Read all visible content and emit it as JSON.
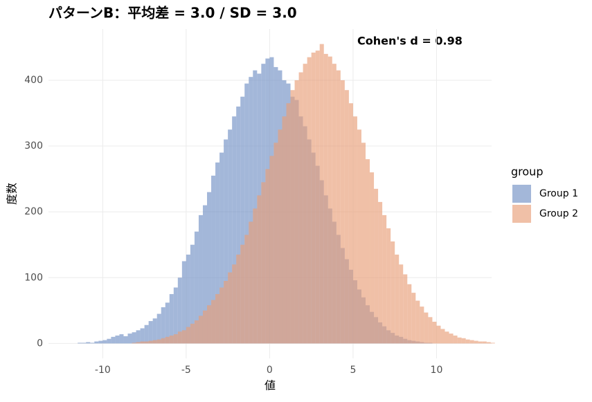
{
  "chart_data": {
    "type": "histogram",
    "title": "パターンB：平均差 = 3.0 / SD = 3.0",
    "annotation": "Cohen's d = 0.98",
    "x_label": "値",
    "y_label": "度数",
    "legend_title": "group",
    "bins": [
      -11.5,
      -11.25,
      -11,
      -10.75,
      -10.5,
      -10.25,
      -10,
      -9.75,
      -9.5,
      -9.25,
      -9,
      -8.75,
      -8.5,
      -8.25,
      -8,
      -7.75,
      -7.5,
      -7.25,
      -7,
      -6.75,
      -6.5,
      -6.25,
      -6,
      -5.75,
      -5.5,
      -5.25,
      -5,
      -4.75,
      -4.5,
      -4.25,
      -4,
      -3.75,
      -3.5,
      -3.25,
      -3,
      -2.75,
      -2.5,
      -2.25,
      -2,
      -1.75,
      -1.5,
      -1.25,
      -1,
      -0.75,
      -0.5,
      -0.25,
      0,
      0.25,
      0.5,
      0.75,
      1,
      1.25,
      1.5,
      1.75,
      2,
      2.25,
      2.5,
      2.75,
      3,
      3.25,
      3.5,
      3.75,
      4,
      4.25,
      4.5,
      4.75,
      5,
      5.25,
      5.5,
      5.75,
      6,
      6.25,
      6.5,
      6.75,
      7,
      7.25,
      7.5,
      7.75,
      8,
      8.25,
      8.5,
      8.75,
      9,
      9.25,
      9.5,
      9.75,
      10,
      10.25,
      10.5,
      10.75,
      11,
      11.25,
      11.5,
      11.75,
      12,
      12.25,
      12.5,
      12.75,
      13,
      13.25,
      13.5
    ],
    "series": [
      {
        "name": "Group 1",
        "color": "#7191c5",
        "values": [
          1,
          1,
          2,
          1,
          3,
          4,
          5,
          7,
          10,
          12,
          14,
          11,
          15,
          17,
          20,
          23,
          28,
          34,
          38,
          45,
          55,
          62,
          75,
          85,
          100,
          125,
          135,
          150,
          170,
          195,
          210,
          230,
          255,
          275,
          290,
          310,
          325,
          345,
          360,
          375,
          395,
          405,
          415,
          410,
          425,
          433,
          435,
          420,
          415,
          400,
          395,
          375,
          370,
          345,
          330,
          310,
          290,
          270,
          248,
          225,
          205,
          185,
          165,
          145,
          128,
          112,
          96,
          82,
          70,
          58,
          48,
          40,
          32,
          26,
          20,
          16,
          12,
          10,
          7,
          5,
          4,
          3,
          2,
          1,
          1,
          0,
          0,
          0,
          0,
          0,
          0,
          0,
          0,
          0,
          0,
          0,
          0,
          0,
          0,
          0
        ]
      },
      {
        "name": "Group 2",
        "color": "#e89e78",
        "values": [
          0,
          0,
          0,
          0,
          0,
          0,
          0,
          0,
          0,
          0,
          0,
          0,
          0,
          1,
          2,
          3,
          3,
          4,
          5,
          6,
          8,
          10,
          12,
          14,
          18,
          20,
          25,
          30,
          35,
          42,
          50,
          58,
          66,
          75,
          85,
          95,
          108,
          120,
          135,
          150,
          165,
          185,
          205,
          225,
          245,
          265,
          285,
          305,
          325,
          345,
          365,
          385,
          400,
          412,
          425,
          435,
          442,
          445,
          455,
          440,
          436,
          425,
          415,
          400,
          385,
          365,
          345,
          325,
          305,
          280,
          260,
          235,
          215,
          195,
          175,
          155,
          135,
          120,
          105,
          90,
          77,
          65,
          56,
          47,
          40,
          33,
          27,
          22,
          18,
          15,
          12,
          9,
          8,
          6,
          5,
          4,
          3,
          3,
          2,
          1
        ]
      }
    ],
    "xlim": [
      -13.25,
      13.3
    ],
    "ylim": [
      -22.75,
      477.75
    ],
    "xticks": [
      -10,
      -5,
      0,
      5,
      10
    ],
    "yticks": [
      0,
      100,
      200,
      300,
      400
    ],
    "grid": true
  }
}
